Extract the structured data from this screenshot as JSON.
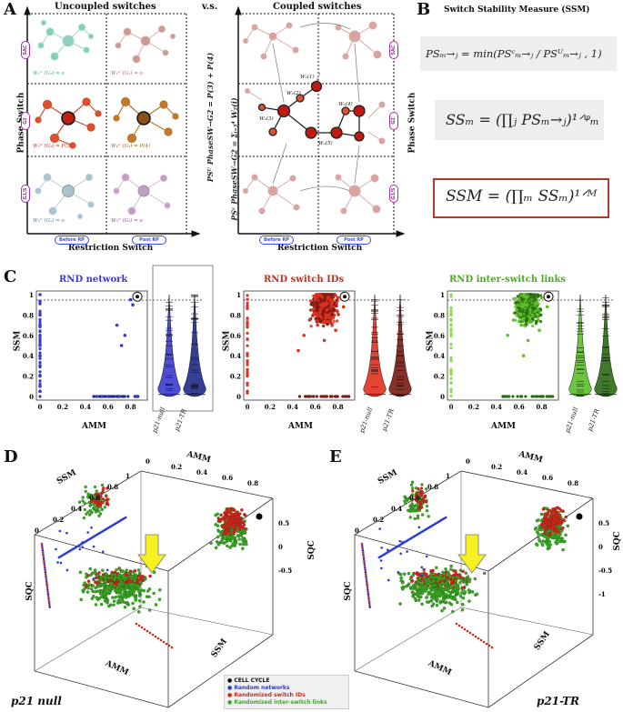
{
  "panels": {
    "A": {
      "letter": "A",
      "title_left": "Uncoupled switches",
      "vs": "v.s.",
      "title_right": "Coupled switches",
      "ylabel": "Phase Switch",
      "xlabel": "Restriction Switch",
      "row_pills": [
        "SAC",
        "G2",
        "G1/S"
      ],
      "col_pills": [
        "Before RP",
        "Post RP"
      ],
      "cell_labels": [
        "W₁ᵁ (G₂) = o",
        "W₂ᵁ (G₂) = o",
        "W₃ᵁ (G₂) = P(3)",
        "W₄ᵁ (G₂) = P(4)",
        "W₅ᵁ (G₂) = o",
        "W₆ᵁ (G₂) = o"
      ],
      "formula_uncoupled": "PSᵁ PhaseSW→G2 = P(3) + P(4)",
      "formula_coupled": "PSᶜ PhaseSW→G2 = Σᵢ₌₃⁴ W₂(i)",
      "edge_labels": [
        "W₂(1)",
        "W₂(2)",
        "W₂(3)",
        "W₂(4)",
        "W₂(5)"
      ]
    },
    "B": {
      "letter": "B",
      "title": "Switch Stability Measure (SSM)",
      "eq1": "PSₘ→ⱼ = min(PSᶜₘ→ⱼ / PSᵁₘ→ⱼ , 1)",
      "eq2": "SSₘ = (∏ⱼ PSₘ→ⱼ)¹ᐟᵠₘ",
      "eq3": "SSM = (∏ₘ SSₘ)¹ᐟᴹ"
    },
    "C": {
      "letter": "C",
      "subplots": [
        {
          "title": "RND network",
          "color": "#3a3ad0",
          "ylabel": "SSM",
          "xlabel": "AMM",
          "xticks": [
            "0",
            "0.2",
            "0.4",
            "0.6",
            "0.8"
          ],
          "yticks": [
            "0",
            "0.2",
            "0.4",
            "0.6",
            "0.8",
            "1"
          ],
          "violin_labels": [
            "p21-null",
            "p21-TR"
          ]
        },
        {
          "title": "RND switch IDs",
          "color": "#c0301e",
          "ylabel": "SSM",
          "xlabel": "AMM",
          "xticks": [
            "0",
            "0.2",
            "0.4",
            "0.6",
            "0.8"
          ],
          "yticks": [
            "0",
            "0.2",
            "0.4",
            "0.6",
            "0.8",
            "1"
          ],
          "violin_labels": [
            "p21-null",
            "p21-TR"
          ]
        },
        {
          "title": "RND inter-switch links",
          "color": "#4caa22",
          "ylabel": "SSM",
          "xlabel": "AMM",
          "xticks": [
            "0",
            "0.2",
            "0.4",
            "0.6",
            "0.8"
          ],
          "yticks": [
            "0",
            "0.2",
            "0.4",
            "0.6",
            "0.8",
            "1"
          ],
          "violin_labels": [
            "p21-null",
            "p21-TR"
          ]
        }
      ]
    },
    "D": {
      "letter": "D",
      "caption": "p21 null",
      "axis_ssm": "SSM",
      "axis_amm": "AMM",
      "axis_sqc": "SQC",
      "ssm_ticks": [
        "0",
        "0.2",
        "0.4",
        "0.6",
        "0.8",
        "1"
      ],
      "amm_ticks": [
        "0",
        "0.2",
        "0.4",
        "0.6",
        "0.8"
      ],
      "sqc_ticks": [
        "0.5",
        "0",
        "-0.5"
      ]
    },
    "E": {
      "letter": "E",
      "caption": "p21-TR",
      "axis_ssm": "SSM",
      "axis_amm": "AMM",
      "axis_sqc": "SQC",
      "ssm_ticks": [
        "0",
        "0.2",
        "0.4",
        "0.6",
        "0.8",
        "1"
      ],
      "amm_ticks": [
        "0",
        "0.2",
        "0.4",
        "0.6",
        "0.8"
      ],
      "sqc_ticks": [
        "0.5",
        "0",
        "-0.5",
        "-1"
      ]
    }
  },
  "legend": {
    "items": [
      {
        "label": "CELL CYCLE",
        "color": "#000000"
      },
      {
        "label": "Random networks",
        "color": "#2a3ad8"
      },
      {
        "label": "Randomized switch IDs",
        "color": "#d02a1e"
      },
      {
        "label": "Randomized inter-switch links",
        "color": "#3aaa22"
      }
    ]
  },
  "chart_data": [
    {
      "type": "scatter",
      "title": "RND network",
      "xlabel": "AMM",
      "ylabel": "SSM",
      "xlim": [
        0,
        0.9
      ],
      "ylim": [
        0,
        1
      ],
      "series": [
        {
          "name": "Random networks",
          "x": [
            0,
            0,
            0,
            0,
            0,
            0,
            0,
            0,
            0,
            0,
            0.5,
            0.55,
            0.68,
            0.72,
            0.75,
            0.8,
            0.82,
            0.7,
            0.6,
            0.85
          ],
          "y": [
            0.05,
            0.1,
            0.2,
            0.3,
            0.4,
            0.5,
            0.6,
            0.7,
            0.8,
            1.0,
            0.0,
            0.0,
            0.7,
            0.5,
            0.6,
            0.95,
            0.9,
            0.0,
            0.0,
            0.0
          ]
        },
        {
          "name": "CELL CYCLE",
          "x": [
            0.86
          ],
          "y": [
            0.98
          ]
        }
      ]
    },
    {
      "type": "scatter",
      "title": "RND switch IDs",
      "xlabel": "AMM",
      "ylabel": "SSM",
      "xlim": [
        0,
        0.9
      ],
      "ylim": [
        0,
        1
      ],
      "series": [
        {
          "name": "Randomized switch IDs",
          "x": [
            0.6,
            0.65,
            0.7,
            0.75,
            0.8,
            0.85,
            0.55,
            0.5,
            0.45,
            0.62,
            0.72,
            0.78,
            0.68,
            0.58,
            0.66
          ],
          "y": [
            0.95,
            0.9,
            0.85,
            0.92,
            0.97,
            0.88,
            0.75,
            0.6,
            0.45,
            0.7,
            0.8,
            0.65,
            0.55,
            0.85,
            0.98
          ]
        },
        {
          "name": "CELL CYCLE",
          "x": [
            0.86
          ],
          "y": [
            0.98
          ]
        }
      ]
    },
    {
      "type": "scatter",
      "title": "RND inter-switch links",
      "xlabel": "AMM",
      "ylabel": "SSM",
      "xlim": [
        0,
        0.9
      ],
      "ylim": [
        0,
        1
      ],
      "series": [
        {
          "name": "Randomized inter-switch links",
          "x": [
            0.6,
            0.65,
            0.7,
            0.75,
            0.8,
            0.85,
            0.55,
            0.5,
            0.62,
            0.72,
            0.78,
            0.68,
            0.58,
            0.66,
            0.64
          ],
          "y": [
            0.95,
            0.9,
            0.85,
            0.92,
            0.97,
            0.88,
            0.75,
            0.6,
            0.7,
            0.8,
            0.65,
            0.55,
            0.85,
            0.98,
            0.4
          ]
        },
        {
          "name": "CELL CYCLE",
          "x": [
            0.86
          ],
          "y": [
            0.98
          ]
        }
      ]
    }
  ]
}
